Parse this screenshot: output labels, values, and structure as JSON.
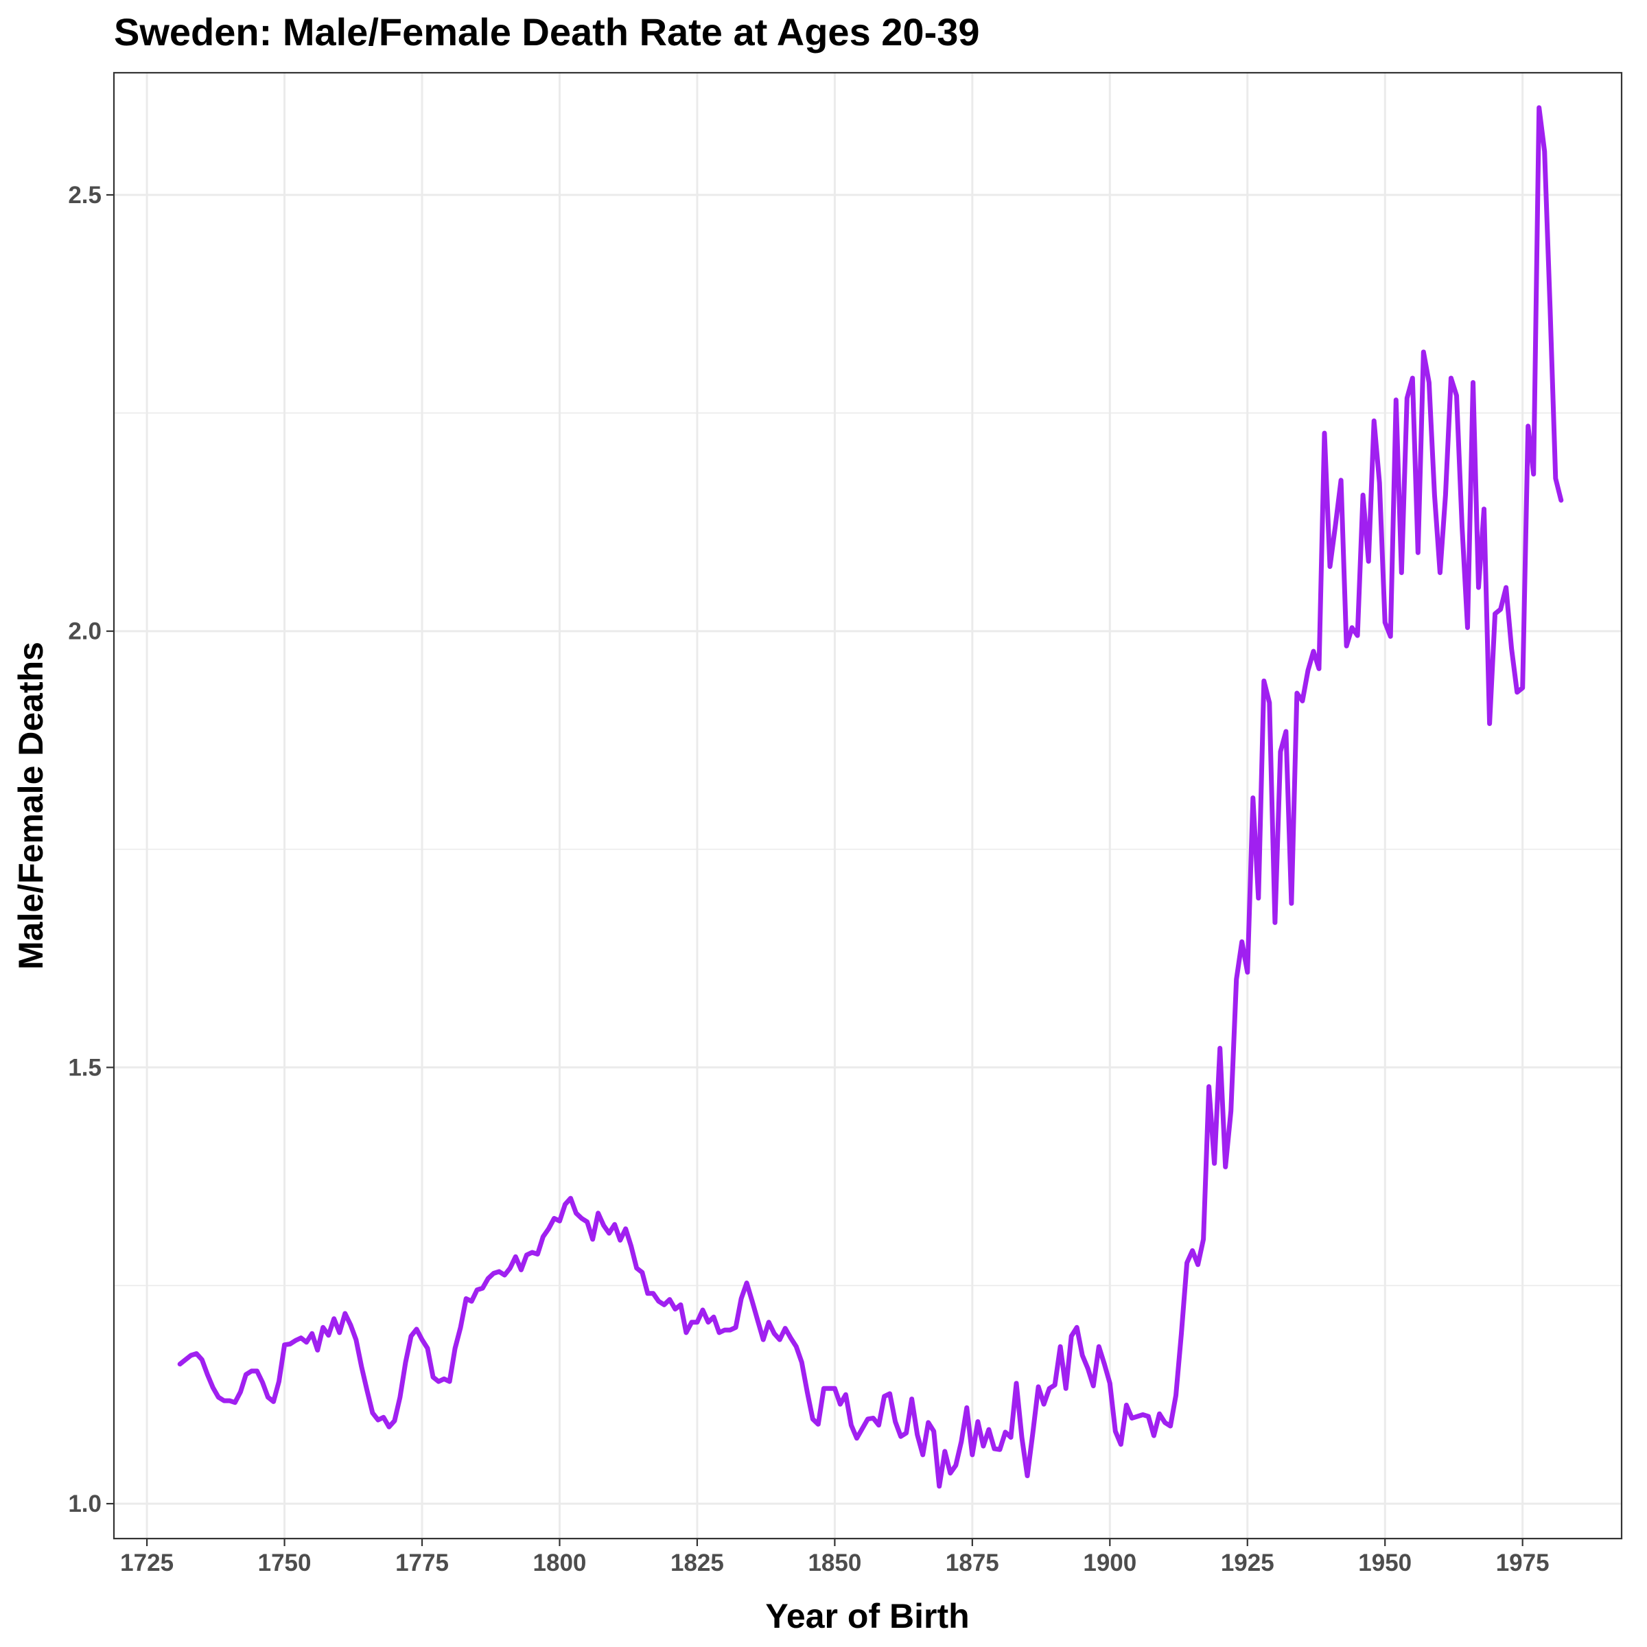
{
  "chart_data": {
    "type": "line",
    "title": "Sweden: Male/Female Death Rate at Ages 20-39",
    "xlabel": "Year of Birth",
    "ylabel": "Male/Female Deaths",
    "xlim": [
      1719,
      1993
    ],
    "ylim": [
      0.96,
      2.64
    ],
    "x_ticks": [
      1725,
      1750,
      1775,
      1800,
      1825,
      1850,
      1875,
      1900,
      1925,
      1950,
      1975
    ],
    "x_tick_labels": [
      "1725",
      "1750",
      "1775",
      "1800",
      "1825",
      "1850",
      "1875",
      "1900",
      "1925",
      "1950",
      "1975"
    ],
    "y_ticks": [
      1.0,
      1.5,
      2.0,
      2.5
    ],
    "y_tick_labels": [
      "1.0",
      "1.5",
      "2.0",
      "2.5"
    ],
    "grid": true,
    "series": [
      {
        "color": "#a020f0",
        "x": [
          1731,
          1732,
          1733,
          1734,
          1735,
          1736,
          1737,
          1738,
          1739,
          1740,
          1741,
          1742,
          1743,
          1744,
          1745,
          1746,
          1747,
          1748,
          1749,
          1750,
          1751,
          1752,
          1753,
          1754,
          1755,
          1756,
          1757,
          1758,
          1759,
          1760,
          1761,
          1762,
          1763,
          1764,
          1765,
          1766,
          1767,
          1768,
          1769,
          1770,
          1771,
          1772,
          1773,
          1774,
          1775,
          1776,
          1777,
          1778,
          1779,
          1780,
          1781,
          1782,
          1783,
          1784,
          1785,
          1786,
          1787,
          1788,
          1789,
          1790,
          1791,
          1792,
          1793,
          1794,
          1795,
          1796,
          1797,
          1798,
          1799,
          1800,
          1801,
          1802,
          1803,
          1804,
          1805,
          1806,
          1807,
          1808,
          1809,
          1810,
          1811,
          1812,
          1813,
          1814,
          1815,
          1816,
          1817,
          1818,
          1819,
          1820,
          1821,
          1822,
          1823,
          1824,
          1825,
          1826,
          1827,
          1828,
          1829,
          1830,
          1831,
          1832,
          1833,
          1834,
          1835,
          1836,
          1837,
          1838,
          1839,
          1840,
          1841,
          1842,
          1843,
          1844,
          1845,
          1846,
          1847,
          1848,
          1849,
          1850,
          1851,
          1852,
          1853,
          1854,
          1855,
          1856,
          1857,
          1858,
          1859,
          1860,
          1861,
          1862,
          1863,
          1864,
          1865,
          1866,
          1867,
          1868,
          1869,
          1870,
          1871,
          1872,
          1873,
          1874,
          1875,
          1876,
          1877,
          1878,
          1879,
          1880,
          1881,
          1882,
          1883,
          1884,
          1885,
          1886,
          1887,
          1888,
          1889,
          1890,
          1891,
          1892,
          1893,
          1894,
          1895,
          1896,
          1897,
          1898,
          1899,
          1900,
          1901,
          1902,
          1903,
          1904,
          1905,
          1906,
          1907,
          1908,
          1909,
          1910,
          1911,
          1912,
          1913,
          1914,
          1915,
          1916,
          1917,
          1918,
          1919,
          1920,
          1921,
          1922,
          1923,
          1924,
          1925,
          1926,
          1927,
          1928,
          1929,
          1930,
          1931,
          1932,
          1933,
          1934,
          1935,
          1936,
          1937,
          1938,
          1939,
          1940,
          1941,
          1942,
          1943,
          1944,
          1945,
          1946,
          1947,
          1948,
          1949,
          1950,
          1951,
          1952,
          1953,
          1954,
          1955,
          1956,
          1957,
          1958,
          1959,
          1960,
          1961,
          1962,
          1963,
          1964,
          1965,
          1966,
          1967,
          1968,
          1969,
          1970,
          1971,
          1972,
          1973,
          1974,
          1975,
          1976,
          1977,
          1978,
          1979,
          1980,
          1981,
          1982
        ],
        "y": [
          1.16,
          1.165,
          1.17,
          1.172,
          1.165,
          1.148,
          1.133,
          1.122,
          1.118,
          1.118,
          1.116,
          1.128,
          1.148,
          1.152,
          1.152,
          1.139,
          1.122,
          1.117,
          1.14,
          1.182,
          1.183,
          1.187,
          1.19,
          1.185,
          1.195,
          1.176,
          1.202,
          1.193,
          1.212,
          1.196,
          1.218,
          1.205,
          1.188,
          1.157,
          1.13,
          1.104,
          1.096,
          1.099,
          1.088,
          1.095,
          1.122,
          1.162,
          1.192,
          1.2,
          1.188,
          1.178,
          1.145,
          1.14,
          1.143,
          1.14,
          1.178,
          1.202,
          1.235,
          1.232,
          1.245,
          1.247,
          1.258,
          1.264,
          1.266,
          1.262,
          1.27,
          1.283,
          1.268,
          1.285,
          1.288,
          1.286,
          1.306,
          1.315,
          1.327,
          1.324,
          1.343,
          1.35,
          1.333,
          1.327,
          1.323,
          1.303,
          1.333,
          1.319,
          1.31,
          1.32,
          1.302,
          1.315,
          1.295,
          1.27,
          1.265,
          1.241,
          1.241,
          1.232,
          1.228,
          1.234,
          1.223,
          1.228,
          1.196,
          1.208,
          1.208,
          1.222,
          1.208,
          1.214,
          1.196,
          1.199,
          1.199,
          1.202,
          1.235,
          1.253,
          1.232,
          1.21,
          1.188,
          1.208,
          1.195,
          1.188,
          1.201,
          1.19,
          1.18,
          1.162,
          1.128,
          1.097,
          1.091,
          1.132,
          1.132,
          1.132,
          1.114,
          1.125,
          1.09,
          1.075,
          1.086,
          1.097,
          1.098,
          1.09,
          1.123,
          1.126,
          1.094,
          1.077,
          1.081,
          1.12,
          1.079,
          1.056,
          1.093,
          1.083,
          1.02,
          1.06,
          1.035,
          1.044,
          1.071,
          1.11,
          1.056,
          1.094,
          1.066,
          1.085,
          1.063,
          1.062,
          1.082,
          1.076,
          1.138,
          1.076,
          1.032,
          1.081,
          1.134,
          1.114,
          1.132,
          1.136,
          1.18,
          1.132,
          1.192,
          1.202,
          1.17,
          1.155,
          1.135,
          1.18,
          1.16,
          1.138,
          1.083,
          1.068,
          1.113,
          1.098,
          1.1,
          1.102,
          1.1,
          1.078,
          1.103,
          1.093,
          1.089,
          1.124,
          1.195,
          1.276,
          1.29,
          1.274,
          1.303,
          1.478,
          1.39,
          1.522,
          1.386,
          1.45,
          1.601,
          1.644,
          1.609,
          1.809,
          1.694,
          1.943,
          1.918,
          1.666,
          1.862,
          1.885,
          1.688,
          1.929,
          1.92,
          1.955,
          1.977,
          1.957,
          2.227,
          2.074,
          2.122,
          2.173,
          1.983,
          2.004,
          1.995,
          2.156,
          2.08,
          2.241,
          2.17,
          2.01,
          1.994,
          2.265,
          2.067,
          2.267,
          2.29,
          2.09,
          2.32,
          2.285,
          2.156,
          2.067,
          2.156,
          2.29,
          2.27,
          2.12,
          2.004,
          2.285,
          2.05,
          2.14,
          1.894,
          2.02,
          2.025,
          2.05,
          1.98,
          1.93,
          1.935,
          2.235,
          2.18,
          2.6,
          2.55,
          2.37,
          2.175,
          2.15
        ]
      }
    ]
  }
}
